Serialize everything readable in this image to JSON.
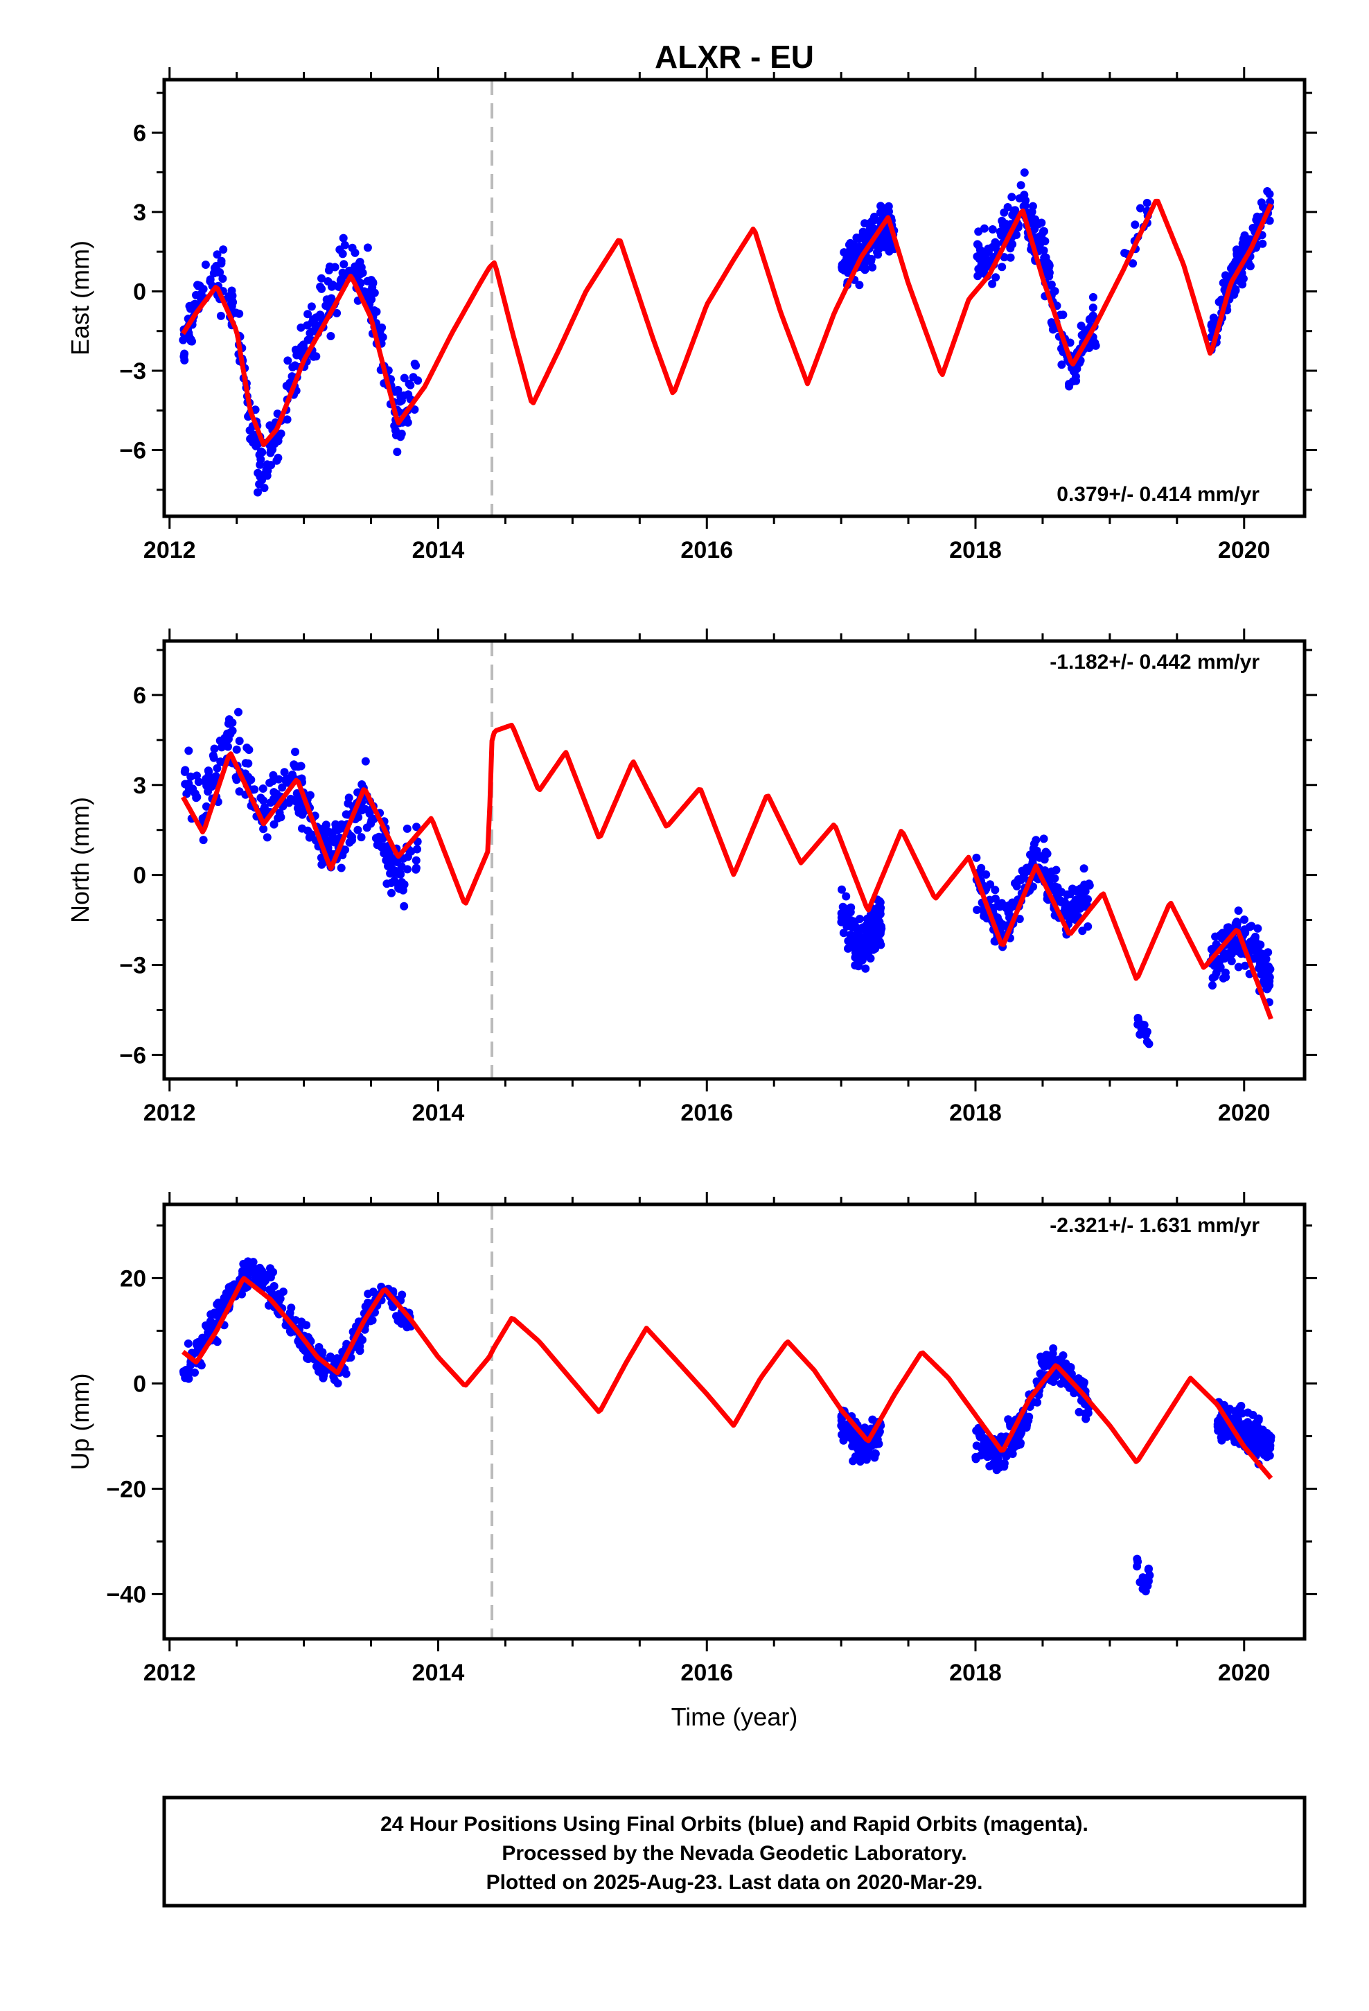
{
  "title": "ALXR - EU",
  "xlabel": "Time (year)",
  "footer": {
    "line1": "24 Hour Positions Using Final Orbits (blue) and Rapid Orbits (magenta).",
    "line2": "Processed by the Nevada Geodetic Laboratory.",
    "line3": "Plotted on 2025-Aug-23. Last data on 2020-Mar-29."
  },
  "colors": {
    "points": "#0000ff",
    "model": "#ff0000",
    "event_line": "#bbbbbb"
  },
  "chart_data": [
    {
      "type": "scatter",
      "component": "east",
      "ylabel": "East (mm)",
      "xlim": [
        2011.96,
        2020.45
      ],
      "ylim": [
        -8.5,
        8.0
      ],
      "xticks": [
        2012,
        2014,
        2016,
        2018,
        2020
      ],
      "yticks": [
        -6,
        -3,
        0,
        3,
        6
      ],
      "rate_label": "0.379+/- 0.414 mm/yr",
      "rate_position": "bottom-right",
      "event_x": 2014.4,
      "model": {
        "x": [
          2012.1,
          2012.2,
          2012.35,
          2012.5,
          2012.6,
          2012.7,
          2012.8,
          2013.0,
          2013.2,
          2013.35,
          2013.5,
          2013.7,
          2013.9,
          2014.1,
          2014.3,
          2014.38,
          2014.42,
          2014.55,
          2014.7,
          2014.9,
          2015.1,
          2015.35,
          2015.6,
          2015.75,
          2016.0,
          2016.2,
          2016.35,
          2016.55,
          2016.75,
          2016.95,
          2017.15,
          2017.35,
          2017.5,
          2017.75,
          2017.95,
          2018.1,
          2018.35,
          2018.5,
          2018.72,
          2018.9,
          2019.1,
          2019.35,
          2019.55,
          2019.75,
          2019.9,
          2020.05,
          2020.2
        ],
        "y": [
          -1.6,
          -0.8,
          0.2,
          -1.5,
          -4.5,
          -5.8,
          -5.2,
          -2.6,
          -0.8,
          0.6,
          -1.0,
          -5.0,
          -3.6,
          -1.6,
          0.2,
          0.9,
          1.1,
          -1.5,
          -4.3,
          -2.2,
          0.0,
          2.0,
          -1.8,
          -3.9,
          -0.5,
          1.2,
          2.4,
          -0.8,
          -3.5,
          -0.8,
          1.3,
          2.8,
          0.3,
          -3.2,
          -0.3,
          0.6,
          3.1,
          0.5,
          -2.8,
          -1.2,
          0.8,
          3.5,
          1.0,
          -2.4,
          0.3,
          1.6,
          3.3
        ]
      },
      "clusters": [
        {
          "x": [
            2012.1,
            2012.2,
            2012.35,
            2012.5,
            2012.6,
            2012.7,
            2012.8,
            2013.0,
            2013.2,
            2013.35,
            2013.5,
            2013.7,
            2013.85
          ],
          "y": [
            -1.8,
            -0.5,
            0.8,
            -1.2,
            -4.5,
            -6.8,
            -5.5,
            -2.2,
            -0.2,
            1.5,
            -0.5,
            -5.0,
            -3.2
          ],
          "spread": 1.4,
          "n": 340
        },
        {
          "x": [
            2017.0,
            2017.15,
            2017.3,
            2017.4
          ],
          "y": [
            0.8,
            1.5,
            2.5,
            2.0
          ],
          "spread": 1.1,
          "n": 170
        },
        {
          "x": [
            2018.0,
            2018.15,
            2018.35,
            2018.5,
            2018.65,
            2018.75,
            2018.9
          ],
          "y": [
            1.0,
            1.5,
            3.2,
            1.5,
            -2.0,
            -2.8,
            -1.0
          ],
          "spread": 1.2,
          "n": 220
        },
        {
          "x": [
            2019.1,
            2019.3
          ],
          "y": [
            1.0,
            3.2
          ],
          "spread": 1.0,
          "n": 14
        },
        {
          "x": [
            2019.75,
            2019.9,
            2020.05,
            2020.2
          ],
          "y": [
            -2.0,
            0.5,
            1.8,
            3.5
          ],
          "spread": 1.0,
          "n": 150
        }
      ]
    },
    {
      "type": "scatter",
      "component": "north",
      "ylabel": "North (mm)",
      "xlim": [
        2011.96,
        2020.45
      ],
      "ylim": [
        -6.8,
        7.8
      ],
      "xticks": [
        2012,
        2014,
        2016,
        2018,
        2020
      ],
      "yticks": [
        -6,
        -3,
        0,
        3,
        6
      ],
      "rate_label": "-1.182+/- 0.442 mm/yr",
      "rate_position": "top-right",
      "event_x": 2014.4,
      "model": {
        "x": [
          2012.1,
          2012.25,
          2012.45,
          2012.7,
          2012.95,
          2013.2,
          2013.45,
          2013.7,
          2013.95,
          2014.2,
          2014.38,
          2014.39,
          2014.42,
          2014.55,
          2014.75,
          2014.95,
          2015.2,
          2015.45,
          2015.7,
          2015.95,
          2016.2,
          2016.45,
          2016.7,
          2016.95,
          2017.2,
          2017.45,
          2017.7,
          2017.95,
          2018.2,
          2018.45,
          2018.7,
          2018.95,
          2019.2,
          2019.45,
          2019.7,
          2019.95,
          2020.2
        ],
        "y": [
          2.6,
          1.4,
          4.1,
          1.7,
          3.2,
          0.2,
          2.9,
          0.6,
          1.9,
          -1.0,
          0.9,
          4.3,
          4.8,
          5.0,
          2.8,
          4.1,
          1.2,
          3.8,
          1.6,
          2.9,
          0.0,
          2.7,
          0.4,
          1.7,
          -1.2,
          1.5,
          -0.8,
          0.6,
          -2.4,
          0.3,
          -2.0,
          -0.6,
          -3.5,
          -0.9,
          -3.1,
          -1.8,
          -4.8
        ]
      },
      "clusters": [
        {
          "x": [
            2012.1,
            2012.25,
            2012.45,
            2012.7,
            2012.95,
            2013.2,
            2013.45,
            2013.7,
            2013.85
          ],
          "y": [
            3.2,
            2.5,
            4.5,
            2.0,
            3.0,
            0.5,
            2.5,
            0.0,
            1.0
          ],
          "spread": 1.2,
          "n": 330
        },
        {
          "x": [
            2017.0,
            2017.15,
            2017.3
          ],
          "y": [
            -1.2,
            -2.5,
            -1.5
          ],
          "spread": 1.0,
          "n": 160
        },
        {
          "x": [
            2018.0,
            2018.2,
            2018.45,
            2018.65,
            2018.85
          ],
          "y": [
            0.0,
            -2.0,
            0.6,
            -1.2,
            -0.8
          ],
          "spread": 1.0,
          "n": 220
        },
        {
          "x": [
            2019.2,
            2019.3
          ],
          "y": [
            -4.8,
            -5.5
          ],
          "spread": 0.5,
          "n": 12
        },
        {
          "x": [
            2019.75,
            2019.95,
            2020.1,
            2020.2
          ],
          "y": [
            -3.0,
            -2.0,
            -2.5,
            -3.8
          ],
          "spread": 1.0,
          "n": 150
        }
      ]
    },
    {
      "type": "scatter",
      "component": "up",
      "ylabel": "Up (mm)",
      "xlim": [
        2011.96,
        2020.45
      ],
      "ylim": [
        -48.5,
        34.0
      ],
      "xticks": [
        2012,
        2014,
        2016,
        2018,
        2020
      ],
      "yticks": [
        -40,
        -20,
        0,
        20
      ],
      "rate_label": "-2.321+/- 1.631 mm/yr",
      "rate_position": "top-right",
      "event_x": 2014.4,
      "model": {
        "x": [
          2012.1,
          2012.2,
          2012.35,
          2012.55,
          2012.75,
          2012.95,
          2013.1,
          2013.25,
          2013.45,
          2013.6,
          2013.8,
          2014.0,
          2014.2,
          2014.38,
          2014.42,
          2014.55,
          2014.75,
          2015.0,
          2015.2,
          2015.4,
          2015.55,
          2015.75,
          2016.0,
          2016.2,
          2016.4,
          2016.6,
          2016.8,
          2017.0,
          2017.2,
          2017.4,
          2017.6,
          2017.8,
          2018.0,
          2018.2,
          2018.4,
          2018.6,
          2018.8,
          2019.0,
          2019.2,
          2019.4,
          2019.6,
          2019.8,
          2020.0,
          2020.2
        ],
        "y": [
          6.0,
          4.0,
          10.0,
          20.0,
          16.0,
          10.0,
          5.0,
          2.0,
          12.0,
          18.0,
          12.0,
          5.0,
          -0.5,
          5.0,
          7.0,
          12.5,
          8.0,
          0.5,
          -5.5,
          4.0,
          10.5,
          5.0,
          -2.0,
          -8.0,
          1.0,
          8.0,
          2.5,
          -5.0,
          -11.0,
          -2.0,
          6.0,
          1.0,
          -6.0,
          -13.0,
          -3.0,
          3.5,
          -2.0,
          -8.0,
          -15.0,
          -7.0,
          1.0,
          -4.0,
          -12.0,
          -18.0
        ]
      },
      "clusters": [
        {
          "x": [
            2012.1,
            2012.2,
            2012.4,
            2012.6,
            2012.75,
            2012.95,
            2013.1,
            2013.25,
            2013.45,
            2013.6,
            2013.8
          ],
          "y": [
            3.0,
            5.0,
            14.0,
            22.0,
            18.0,
            10.0,
            4.0,
            2.0,
            12.0,
            18.0,
            11.0
          ],
          "spread": 4.0,
          "n": 320
        },
        {
          "x": [
            2017.0,
            2017.15,
            2017.3
          ],
          "y": [
            -7.0,
            -12.0,
            -9.0
          ],
          "spread": 4.0,
          "n": 150
        },
        {
          "x": [
            2018.0,
            2018.15,
            2018.35,
            2018.5,
            2018.65,
            2018.85
          ],
          "y": [
            -10.0,
            -14.0,
            -8.0,
            2.0,
            3.0,
            -4.0
          ],
          "spread": 4.0,
          "n": 230
        },
        {
          "x": [
            2019.2,
            2019.25,
            2019.3
          ],
          "y": [
            -33.0,
            -40.0,
            -36.0
          ],
          "spread": 3.5,
          "n": 16
        },
        {
          "x": [
            2019.8,
            2019.95,
            2020.1,
            2020.2
          ],
          "y": [
            -7.0,
            -9.0,
            -10.0,
            -12.0
          ],
          "spread": 4.0,
          "n": 160
        }
      ]
    }
  ]
}
